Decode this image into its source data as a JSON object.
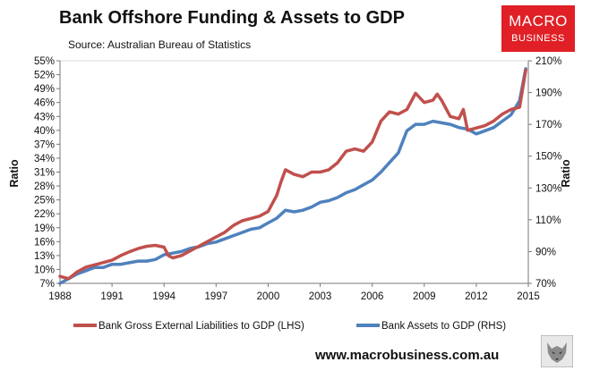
{
  "title": "Bank Offshore Funding & Assets to GDP",
  "source": "Source:  Australian Bureau of Statistics",
  "logo": {
    "line1": "MACRO",
    "line2": "BUSINESS"
  },
  "website": "www.macrobusiness.com.au",
  "colors": {
    "lhs_series": "#c0504d",
    "rhs_series": "#4f81bd",
    "logo_bg": "#e02026"
  },
  "chart_data": {
    "type": "line",
    "xlim": [
      1988,
      2015
    ],
    "x_ticks": [
      "1988",
      "1991",
      "1994",
      "1997",
      "2000",
      "2003",
      "2006",
      "2009",
      "2012",
      "2015"
    ],
    "ylabel_left": "Ratio",
    "ylabel_right": "Ratio",
    "ylim_left": [
      7,
      55
    ],
    "y_ticks_left": [
      "55%",
      "52%",
      "49%",
      "46%",
      "43%",
      "40%",
      "37%",
      "34%",
      "31%",
      "28%",
      "25%",
      "22%",
      "19%",
      "16%",
      "13%",
      "10%",
      "7%"
    ],
    "ylim_right": [
      70,
      210
    ],
    "y_ticks_right": [
      "210%",
      "190%",
      "170%",
      "150%",
      "130%",
      "110%",
      "90%",
      "70%"
    ],
    "grid": false,
    "legend_position": "bottom",
    "series": [
      {
        "name": "Bank Gross External Liabilities to GDP (LHS)",
        "axis": "left",
        "x": [
          1988.0,
          1988.5,
          1989.0,
          1989.5,
          1990.0,
          1990.5,
          1991.0,
          1991.5,
          1992.0,
          1992.5,
          1993.0,
          1993.5,
          1994.0,
          1994.25,
          1994.5,
          1995.0,
          1995.5,
          1996.0,
          1996.5,
          1997.0,
          1997.5,
          1998.0,
          1998.5,
          1999.0,
          1999.5,
          2000.0,
          2000.5,
          2000.75,
          2001.0,
          2001.5,
          2002.0,
          2002.5,
          2003.0,
          2003.5,
          2004.0,
          2004.5,
          2005.0,
          2005.5,
          2006.0,
          2006.5,
          2007.0,
          2007.5,
          2008.0,
          2008.5,
          2008.75,
          2009.0,
          2009.5,
          2009.75,
          2010.0,
          2010.5,
          2011.0,
          2011.25,
          2011.5,
          2012.0,
          2012.5,
          2013.0,
          2013.5,
          2014.0,
          2014.5,
          2014.85
        ],
        "values": [
          8.5,
          8.0,
          9.5,
          10.5,
          11.0,
          11.5,
          12.0,
          13.0,
          13.8,
          14.5,
          15.0,
          15.2,
          14.8,
          13.0,
          12.5,
          13.0,
          14.0,
          15.0,
          16.0,
          17.0,
          18.0,
          19.5,
          20.5,
          21.0,
          21.5,
          22.5,
          26.0,
          29.0,
          31.5,
          30.5,
          30.0,
          31.0,
          31.0,
          31.5,
          33.0,
          35.5,
          36.0,
          35.5,
          37.5,
          42.0,
          44.0,
          43.5,
          44.5,
          48.0,
          47.0,
          46.0,
          46.5,
          47.8,
          46.5,
          43.0,
          42.5,
          44.5,
          40.0,
          40.5,
          41.0,
          42.0,
          43.5,
          44.5,
          45.0,
          53.0
        ]
      },
      {
        "name": "Bank Assets to GDP (RHS)",
        "axis": "right",
        "x": [
          1988.0,
          1988.5,
          1989.0,
          1989.5,
          1990.0,
          1990.5,
          1991.0,
          1991.5,
          1992.0,
          1992.5,
          1993.0,
          1993.5,
          1994.0,
          1994.5,
          1995.0,
          1995.5,
          1996.0,
          1996.5,
          1997.0,
          1997.5,
          1998.0,
          1998.5,
          1999.0,
          1999.5,
          2000.0,
          2000.5,
          2001.0,
          2001.5,
          2002.0,
          2002.5,
          2003.0,
          2003.5,
          2004.0,
          2004.5,
          2005.0,
          2005.5,
          2006.0,
          2006.5,
          2007.0,
          2007.5,
          2008.0,
          2008.5,
          2009.0,
          2009.5,
          2010.0,
          2010.5,
          2011.0,
          2011.5,
          2012.0,
          2012.5,
          2013.0,
          2013.5,
          2014.0,
          2014.5,
          2014.85
        ],
        "values": [
          70,
          73,
          76,
          78,
          80,
          80,
          82,
          82,
          83,
          84,
          84,
          85,
          88,
          89,
          90,
          92,
          93,
          95,
          96,
          98,
          100,
          102,
          104,
          105,
          108,
          111,
          116,
          115,
          116,
          118,
          121,
          122,
          124,
          127,
          129,
          132,
          135,
          140,
          146,
          152,
          166,
          170,
          170,
          172,
          171,
          170,
          168,
          167,
          164,
          166,
          168,
          172,
          176,
          185,
          205
        ]
      }
    ]
  }
}
